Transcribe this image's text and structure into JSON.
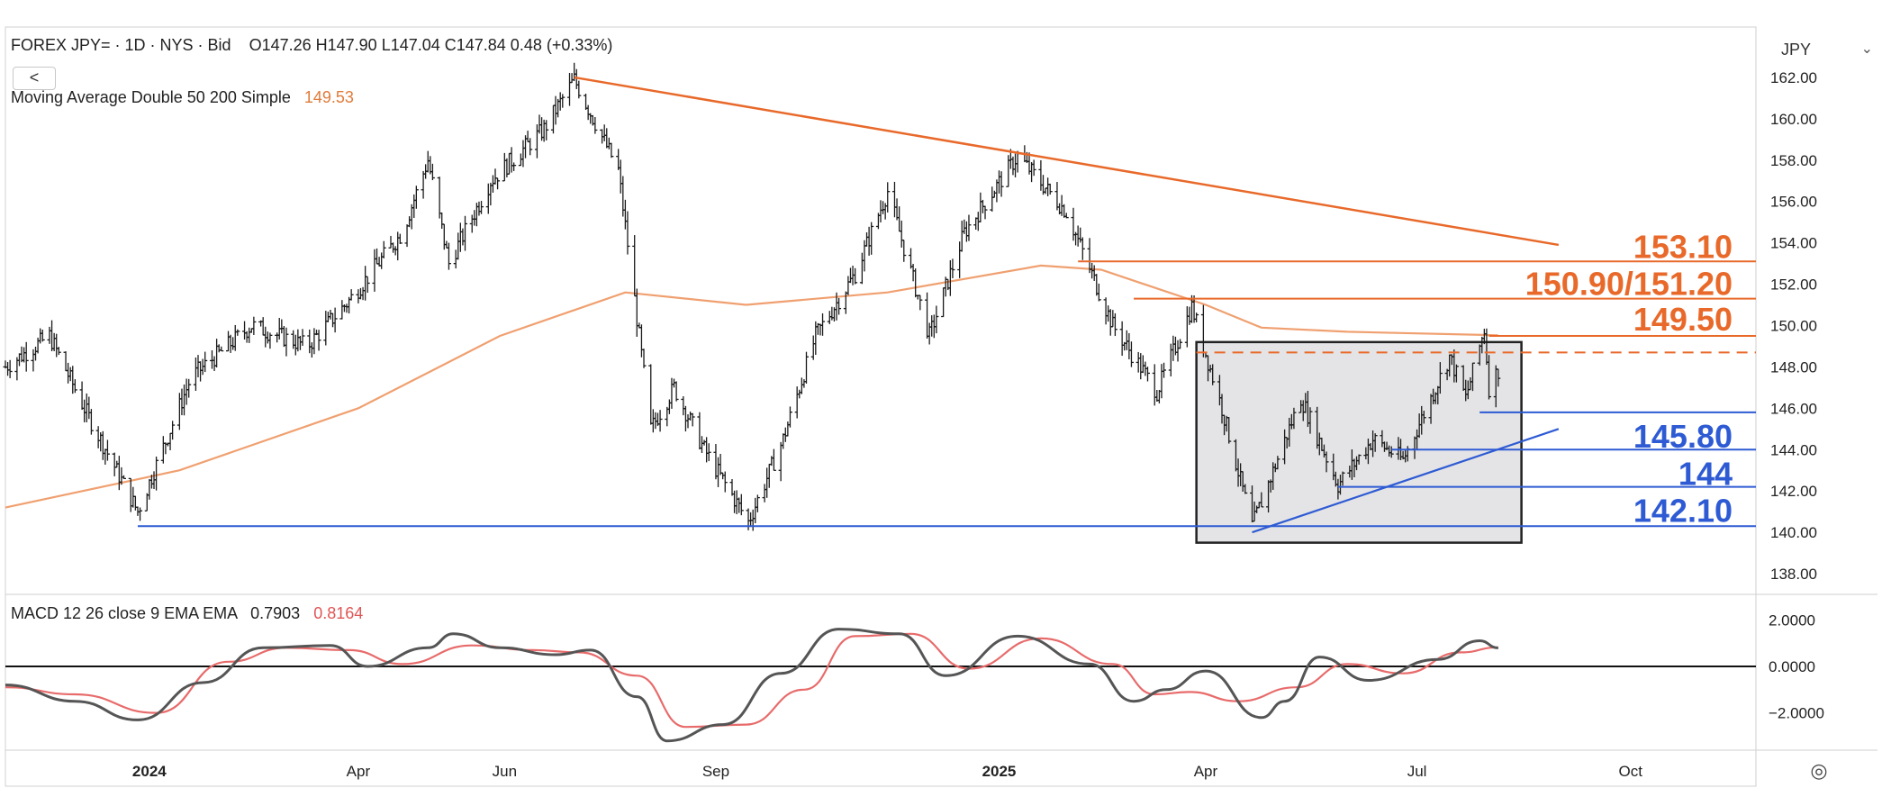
{
  "header": {
    "symbol": "FOREX JPY= · 1D · NYS · Bid",
    "ohlc": "O147.26  H147.90  L147.04  C147.84  0.48 (+0.33%)",
    "ma_label": "Moving Average Double 50 200 Simple",
    "ma_value": "149.53",
    "back_label": "<",
    "currency": "JPY",
    "currency_chevron": "⌄",
    "settings_icon": "eye-settings-icon",
    "settings_glyph": "◎"
  },
  "macd_header": {
    "label": "MACD 12 26 close 9 EMA EMA",
    "macd_value": "0.7903",
    "signal_value": "0.8164"
  },
  "colors": {
    "price": "#1a1a1a",
    "ma": "#f0a070",
    "resistance": "#e8692a",
    "support": "#2e5bd4",
    "macd_line": "#555555",
    "signal_line": "#e86b6b",
    "box_fill": "#e4e4e6"
  },
  "chart_data": [
    {
      "type": "candlestick",
      "title": "FOREX JPY= · 1D · NYS · Bid",
      "y_ticks": [
        "162.00",
        "160.00",
        "158.00",
        "156.00",
        "154.00",
        "152.00",
        "150.00",
        "148.00",
        "146.00",
        "144.00",
        "142.00",
        "140.00",
        "138.00"
      ],
      "ylim": [
        137,
        164
      ],
      "x_ticks": [
        "2024",
        "Apr",
        "Jun",
        "Sep",
        "2025",
        "Apr",
        "Jul",
        "Oct"
      ],
      "grid": false,
      "series": [
        {
          "name": "JPY=",
          "price_path_dates": [
            "2023-11-01",
            "2023-11-20",
            "2023-12-05",
            "2023-12-28",
            "2024-01-20",
            "2024-02-15",
            "2024-03-10",
            "2024-03-28",
            "2024-04-20",
            "2024-05-01",
            "2024-05-10",
            "2024-05-28",
            "2024-06-20",
            "2024-07-03",
            "2024-07-22",
            "2024-08-05",
            "2024-08-15",
            "2024-08-28",
            "2024-09-16",
            "2024-10-01",
            "2024-10-15",
            "2024-11-01",
            "2024-11-15",
            "2024-12-03",
            "2024-12-18",
            "2025-01-10",
            "2025-01-31",
            "2025-02-20",
            "2025-03-11",
            "2025-03-26",
            "2025-04-08",
            "2025-04-21",
            "2025-05-12",
            "2025-05-28",
            "2025-06-12",
            "2025-06-25",
            "2025-07-15",
            "2025-07-22",
            "2025-07-30",
            "2025-08-01",
            "2025-08-05"
          ],
          "price_path_values": [
            148.0,
            149.5,
            146.0,
            141.0,
            147.5,
            150.0,
            149.0,
            151.2,
            154.5,
            158.0,
            153.0,
            157.0,
            159.5,
            161.9,
            157.5,
            145.0,
            147.0,
            144.0,
            140.5,
            144.5,
            149.5,
            152.5,
            156.5,
            149.5,
            154.5,
            158.2,
            155.5,
            150.0,
            146.8,
            150.9,
            146.0,
            140.3,
            146.5,
            142.3,
            144.5,
            143.5,
            148.5,
            146.5,
            149.8,
            147.0,
            147.84
          ]
        },
        {
          "name": "Moving Average Double 50 200 Simple",
          "dates": [
            "2023-11-01",
            "2024-01-15",
            "2024-04-01",
            "2024-06-01",
            "2024-07-25",
            "2024-09-15",
            "2024-11-15",
            "2025-01-20",
            "2025-02-15",
            "2025-04-01",
            "2025-04-25",
            "2025-06-01",
            "2025-08-05"
          ],
          "values": [
            141.2,
            143.0,
            146.0,
            149.5,
            151.6,
            151.0,
            151.6,
            152.9,
            152.7,
            151.0,
            149.9,
            149.7,
            149.53
          ]
        }
      ],
      "annotations": {
        "resistance_labels": [
          "153.10",
          "150.90/151.20",
          "149.50"
        ],
        "support_labels": [
          "145.80",
          "144",
          "142.10"
        ],
        "downtrend_line": {
          "from": [
            "2024-07-03",
            162.0
          ],
          "to": [
            "2025-08-31",
            153.9
          ]
        },
        "uptrend_line": {
          "from": [
            "2025-04-21",
            140.0
          ],
          "to": [
            "2025-08-31",
            145.0
          ]
        },
        "consolidation_box": {
          "x_from": "2025-03-28",
          "x_to": "2025-08-15",
          "y_from": 139.5,
          "y_to": 149.2
        },
        "box_top_dashed": 148.7,
        "horizontal_levels": [
          {
            "value": 153.1,
            "from": "2025-02-05"
          },
          {
            "value": 151.3,
            "from": "2025-03-01"
          },
          {
            "value": 149.5,
            "from": "2025-08-01"
          },
          {
            "value": 145.8,
            "from": "2025-07-28"
          },
          {
            "value": 144.0,
            "from": "2025-06-20"
          },
          {
            "value": 142.2,
            "from": "2025-05-28"
          },
          {
            "value": 140.3,
            "from": "2023-12-28"
          }
        ]
      }
    },
    {
      "type": "line",
      "title": "MACD 12 26 close 9 EMA EMA",
      "y_ticks": [
        "2.0000",
        "0.0000",
        "−2.0000"
      ],
      "ylim": [
        -3.6,
        2.9
      ],
      "series": [
        {
          "name": "MACD",
          "dates": [
            "2023-11-01",
            "2023-12-01",
            "2023-12-28",
            "2024-01-25",
            "2024-02-20",
            "2024-03-20",
            "2024-04-05",
            "2024-05-01",
            "2024-05-12",
            "2024-06-01",
            "2024-06-25",
            "2024-07-10",
            "2024-07-30",
            "2024-08-12",
            "2024-09-05",
            "2024-09-30",
            "2024-10-25",
            "2024-11-20",
            "2024-12-10",
            "2025-01-10",
            "2025-02-10",
            "2025-03-01",
            "2025-03-15",
            "2025-04-01",
            "2025-04-25",
            "2025-05-05",
            "2025-05-20",
            "2025-06-10",
            "2025-07-10",
            "2025-07-28",
            "2025-08-05"
          ],
          "values": [
            -0.8,
            -1.5,
            -2.3,
            -0.7,
            0.8,
            0.9,
            0.0,
            0.8,
            1.4,
            0.8,
            0.5,
            0.7,
            -1.3,
            -3.2,
            -2.5,
            -0.3,
            1.6,
            1.4,
            -0.4,
            1.3,
            0.1,
            -1.5,
            -1.0,
            -0.2,
            -2.2,
            -1.5,
            0.4,
            -0.6,
            0.3,
            1.1,
            0.79
          ]
        },
        {
          "name": "Signal",
          "dates": [
            "2023-11-01",
            "2023-12-01",
            "2024-01-05",
            "2024-02-05",
            "2024-03-01",
            "2024-03-28",
            "2024-04-20",
            "2024-05-20",
            "2024-06-15",
            "2024-07-05",
            "2024-07-30",
            "2024-08-20",
            "2024-09-15",
            "2024-10-10",
            "2024-11-01",
            "2024-11-25",
            "2024-12-20",
            "2025-01-20",
            "2025-02-20",
            "2025-03-10",
            "2025-03-25",
            "2025-04-15",
            "2025-05-10",
            "2025-06-01",
            "2025-06-25",
            "2025-07-20",
            "2025-08-05"
          ],
          "values": [
            -0.9,
            -1.2,
            -2.0,
            0.2,
            0.8,
            0.7,
            0.1,
            0.9,
            0.7,
            0.6,
            -0.4,
            -2.6,
            -2.5,
            -1.0,
            1.3,
            1.4,
            -0.1,
            1.2,
            0.1,
            -1.2,
            -1.1,
            -1.5,
            -0.9,
            0.1,
            -0.3,
            0.6,
            0.82
          ]
        }
      ]
    }
  ]
}
